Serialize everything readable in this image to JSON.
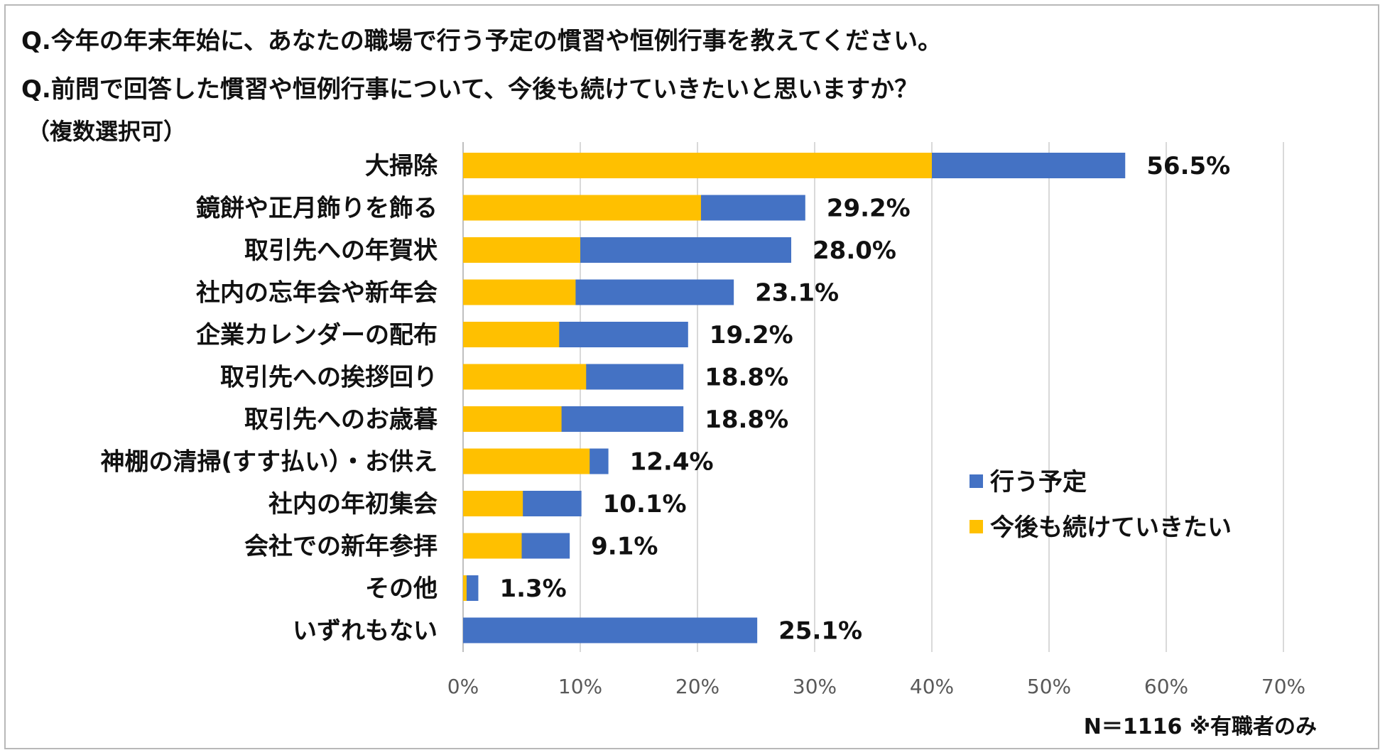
{
  "questions": {
    "q1": "Q.今年の年末年始に、あなたの職場で行う予定の慣習や恒例行事を教えてください。",
    "q2": "Q.前問で回答した慣習や恒例行事について、今後も続けていきたいと思いますか？",
    "note": "（複数選択可）"
  },
  "footer": "N＝1116 ※有職者のみ",
  "chart_data": {
    "type": "bar",
    "orientation": "horizontal",
    "categories": [
      "大掃除",
      "鏡餅や正月飾りを飾る",
      "取引先への年賀状",
      "社内の忘年会や新年会",
      "企業カレンダーの配布",
      "取引先への挨拶回り",
      "取引先へのお歳暮",
      "神棚の清掃(すす払い）・お供え",
      "社内の年初集会",
      "会社での新年参拝",
      "その他",
      "いずれもない"
    ],
    "series": [
      {
        "name": "行う予定",
        "color": "#4472c4",
        "values": [
          56.5,
          29.2,
          28.0,
          23.1,
          19.2,
          18.8,
          18.8,
          12.4,
          10.1,
          9.1,
          1.3,
          25.1
        ]
      },
      {
        "name": "今後も続けていきたい",
        "color": "#ffc000",
        "values": [
          40.0,
          20.3,
          10.0,
          9.6,
          8.2,
          10.5,
          8.4,
          10.8,
          5.1,
          5.0,
          0.3,
          0
        ]
      }
    ],
    "data_labels": [
      "56.5%",
      "29.2%",
      "28.0%",
      "23.1%",
      "19.2%",
      "18.8%",
      "18.8%",
      "12.4%",
      "10.1%",
      "9.1%",
      "1.3%",
      "25.1%"
    ],
    "xlim": [
      0,
      70
    ],
    "xticks": [
      "0%",
      "10%",
      "20%",
      "30%",
      "40%",
      "50%",
      "60%",
      "70%"
    ],
    "legend": [
      "行う予定",
      "今後も続けていきたい"
    ],
    "legend_position": "right",
    "grid": true
  }
}
